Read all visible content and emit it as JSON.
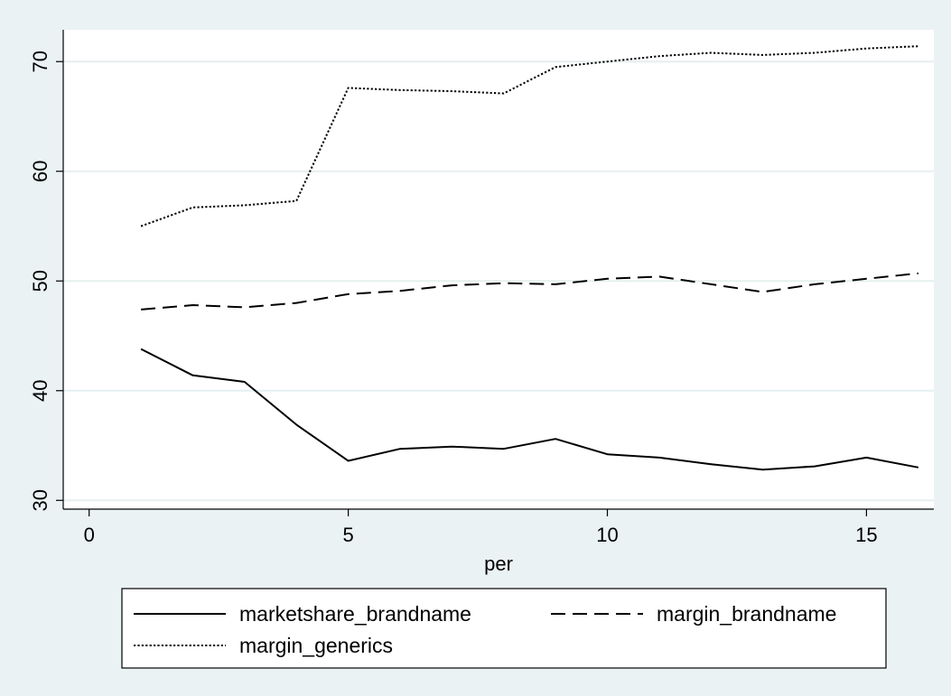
{
  "chart_data": {
    "type": "line",
    "title": "",
    "xlabel": "per",
    "ylabel": "",
    "xlim": [
      -0.5,
      16.3
    ],
    "ylim": [
      29.2,
      72.9
    ],
    "xticks": [
      0,
      5,
      10,
      15
    ],
    "yticks": [
      30,
      40,
      50,
      60,
      70
    ],
    "grid": "horizontal",
    "legend_position": "bottom",
    "x": [
      1,
      2,
      3,
      4,
      5,
      6,
      7,
      8,
      9,
      10,
      11,
      12,
      13,
      14,
      15,
      16
    ],
    "series": [
      {
        "name": "marketshare_brandname",
        "style": "solid",
        "values": [
          43.8,
          41.4,
          40.8,
          36.9,
          33.6,
          34.7,
          34.9,
          34.7,
          35.6,
          34.2,
          33.9,
          33.3,
          32.8,
          33.1,
          33.9,
          33.0
        ]
      },
      {
        "name": "margin_brandname",
        "style": "dashed",
        "values": [
          47.4,
          47.8,
          47.6,
          48.0,
          48.8,
          49.1,
          49.6,
          49.8,
          49.7,
          50.2,
          50.4,
          49.7,
          49.0,
          49.7,
          50.2,
          50.7
        ]
      },
      {
        "name": "margin_generics",
        "style": "dotted",
        "values": [
          55.0,
          56.7,
          56.9,
          57.3,
          67.6,
          67.4,
          67.3,
          67.1,
          69.5,
          70.0,
          70.5,
          70.8,
          70.6,
          70.8,
          71.2,
          71.4
        ]
      }
    ]
  }
}
